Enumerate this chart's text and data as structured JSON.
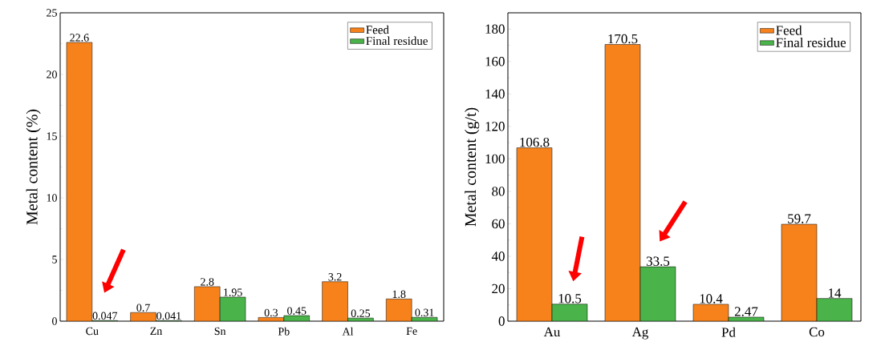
{
  "chart_data": [
    {
      "type": "bar",
      "ylabel": "Metal content (%)",
      "categories": [
        "Cu",
        "Zn",
        "Sn",
        "Pb",
        "Al",
        "Fe"
      ],
      "ylim": [
        0,
        25
      ],
      "yticks": [
        0,
        5,
        10,
        15,
        20,
        25
      ],
      "data_labels": true,
      "legend": "top right",
      "series": [
        {
          "name": "Feed",
          "color": "#f7821b",
          "values": [
            22.6,
            0.7,
            2.8,
            0.3,
            3.2,
            1.8
          ]
        },
        {
          "name": "Final residue",
          "color": "#4ab34a",
          "values": [
            0.047,
            0.041,
            1.95,
            0.45,
            0.25,
            0.31
          ]
        }
      ]
    },
    {
      "type": "bar",
      "ylabel": "Metal content (g/t)",
      "categories": [
        "Au",
        "Ag",
        "Pd",
        "Co"
      ],
      "ylim": [
        0,
        190
      ],
      "yticks": [
        0,
        20,
        40,
        60,
        80,
        100,
        120,
        140,
        160,
        180
      ],
      "data_labels": true,
      "legend": "top right",
      "series": [
        {
          "name": "Feed",
          "color": "#f7821b",
          "values": [
            106.8,
            170.5,
            10.4,
            59.7
          ]
        },
        {
          "name": "Final residue",
          "color": "#4ab34a",
          "values": [
            10.5,
            33.5,
            2.47,
            14
          ]
        }
      ]
    }
  ]
}
